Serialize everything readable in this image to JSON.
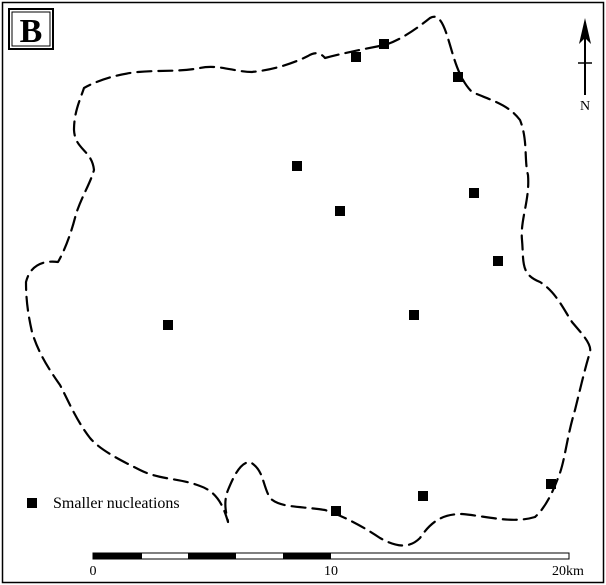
{
  "panel_label": "B",
  "north_label": "N",
  "legend": {
    "label": "Smaller nucleations"
  },
  "scale_bar": {
    "labels": [
      "0",
      "10",
      "20km"
    ]
  },
  "colors": {
    "ink": "#000000",
    "paper": "#ffffff"
  },
  "icons": {
    "north": "north-arrow-icon",
    "site": "square-marker-icon"
  }
}
